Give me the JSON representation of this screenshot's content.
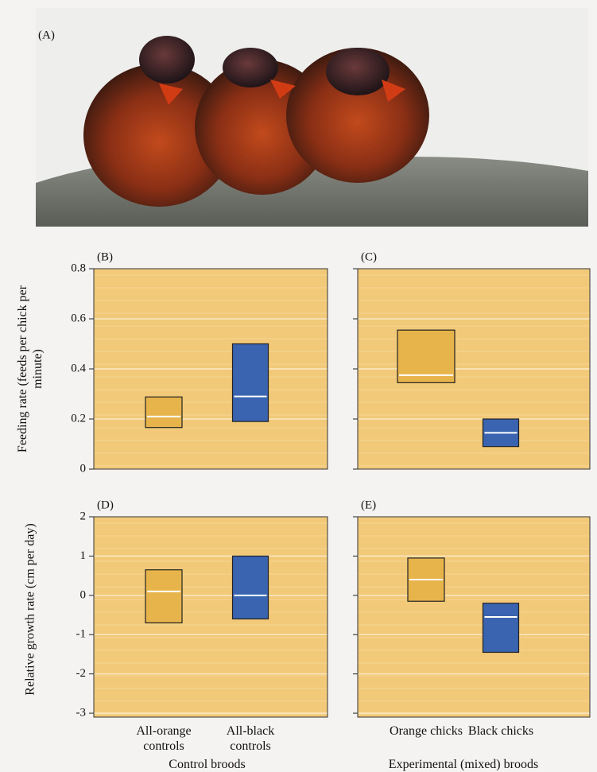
{
  "photo_label": "(A)",
  "chart_data": [
    {
      "type": "range",
      "panel": "(B)",
      "ylabel": "Feeding rate (feeds per chick per minute)",
      "categories": [
        null,
        null
      ],
      "colors": [
        "#e7b44c",
        "#3a64b0"
      ],
      "low": [
        0.166,
        0.19
      ],
      "mean": [
        0.21,
        0.29
      ],
      "high": [
        0.288,
        0.5
      ],
      "ylim": [
        0,
        0.8
      ],
      "yticks": [
        0,
        0.2,
        0.4,
        0.6,
        0.8
      ],
      "tick_labels": true,
      "grid": true
    },
    {
      "type": "range",
      "panel": "(C)",
      "categories": [
        null,
        null
      ],
      "colors": [
        "#e7b44c",
        "#3a64b0"
      ],
      "low": [
        0.345,
        0.09
      ],
      "mean": [
        0.375,
        0.145
      ],
      "high": [
        0.555,
        0.2
      ],
      "ylim": [
        0,
        0.8
      ],
      "yticks": [
        0,
        0.2,
        0.4,
        0.6,
        0.8
      ],
      "tick_labels": false,
      "grid": true
    },
    {
      "type": "range",
      "panel": "(D)",
      "ylabel": "Relative growth rate (cm per day)",
      "xlabel": "Control broods",
      "categories": [
        "All-orange controls",
        "All-black controls"
      ],
      "colors": [
        "#e7b44c",
        "#3a64b0"
      ],
      "low": [
        -0.7,
        -0.6
      ],
      "mean": [
        0.1,
        0.0
      ],
      "high": [
        0.65,
        1.0
      ],
      "ylim": [
        -3.1,
        2
      ],
      "yticks": [
        -3,
        -2,
        -1,
        0,
        1,
        2
      ],
      "tick_labels": true,
      "grid": true
    },
    {
      "type": "range",
      "panel": "(E)",
      "xlabel": "Experimental (mixed) broods",
      "categories": [
        "Orange chicks",
        "Black chicks"
      ],
      "colors": [
        "#e7b44c",
        "#3a64b0"
      ],
      "low": [
        -0.15,
        -1.45
      ],
      "mean": [
        0.4,
        -0.55
      ],
      "high": [
        0.95,
        -0.2
      ],
      "ylim": [
        -3.1,
        2
      ],
      "yticks": [
        -3,
        -2,
        -1,
        0,
        1,
        2
      ],
      "tick_labels": false,
      "grid": true
    }
  ]
}
